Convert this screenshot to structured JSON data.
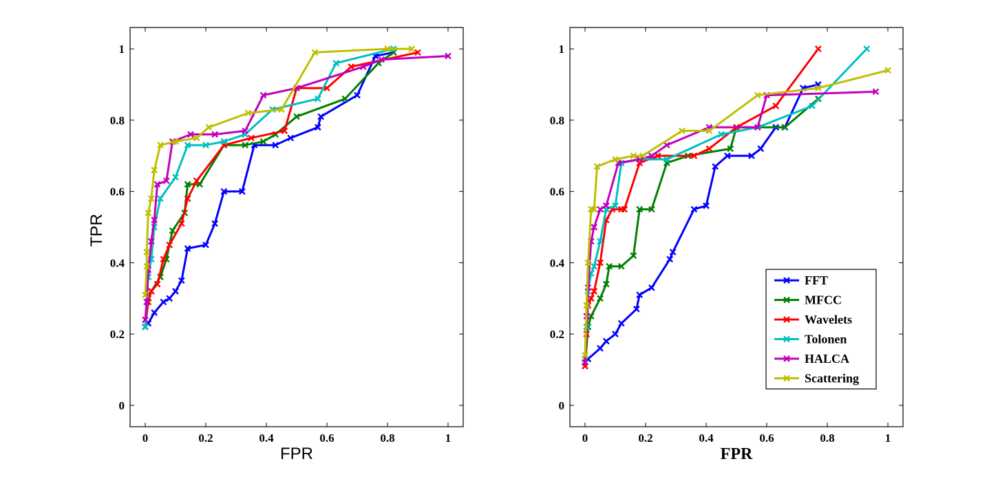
{
  "colors": {
    "FFT": "#0000ff",
    "MFCC": "#008000",
    "Wavelets": "#ff0000",
    "Tolonen": "#00bfbf",
    "HALCA": "#bf00bf",
    "Scattering": "#bfbf00"
  },
  "legend": {
    "entries": [
      "FFT",
      "MFCC",
      "Wavelets",
      "Tolonen",
      "HALCA",
      "Scattering"
    ],
    "placement": "bottom-right of right panel"
  },
  "chart_data": [
    {
      "type": "line",
      "xlabel": "FPR",
      "ylabel": "TPR",
      "xlim": [
        -0.05,
        1.05
      ],
      "ylim": [
        -0.06,
        1.06
      ],
      "xticks": [
        0,
        0.2,
        0.4,
        0.6,
        0.8,
        1
      ],
      "yticks": [
        0,
        0.2,
        0.4,
        0.6,
        0.8,
        1
      ],
      "xtick_labels": [
        "0",
        "0.2",
        "0.4",
        "0.6",
        "0.8",
        "1"
      ],
      "ytick_labels": [
        "0",
        "0.2",
        "0.4",
        "0.6",
        "0.8",
        "1"
      ],
      "series": [
        {
          "name": "FFT",
          "x": [
            0,
            0.01,
            0.03,
            0.06,
            0.08,
            0.1,
            0.12,
            0.14,
            0.2,
            0.23,
            0.26,
            0.32,
            0.36,
            0.43,
            0.48,
            0.57,
            0.58,
            0.7,
            0.76,
            0.82
          ],
          "y": [
            0.22,
            0.23,
            0.26,
            0.29,
            0.3,
            0.32,
            0.35,
            0.44,
            0.45,
            0.51,
            0.6,
            0.6,
            0.73,
            0.73,
            0.75,
            0.78,
            0.81,
            0.87,
            0.98,
            0.99
          ]
        },
        {
          "name": "MFCC",
          "x": [
            0,
            0.01,
            0.02,
            0.05,
            0.07,
            0.09,
            0.13,
            0.14,
            0.18,
            0.26,
            0.33,
            0.39,
            0.43,
            0.5,
            0.66,
            0.77,
            0.82
          ],
          "y": [
            0.22,
            0.3,
            0.32,
            0.36,
            0.41,
            0.49,
            0.54,
            0.62,
            0.62,
            0.73,
            0.73,
            0.74,
            0.76,
            0.81,
            0.86,
            0.96,
            0.99
          ]
        },
        {
          "name": "Wavelets",
          "x": [
            0,
            0.01,
            0.02,
            0.04,
            0.06,
            0.08,
            0.12,
            0.14,
            0.17,
            0.26,
            0.35,
            0.46,
            0.5,
            0.6,
            0.68,
            0.9
          ],
          "y": [
            0.22,
            0.29,
            0.32,
            0.34,
            0.41,
            0.45,
            0.51,
            0.58,
            0.63,
            0.73,
            0.75,
            0.77,
            0.89,
            0.89,
            0.95,
            0.99
          ]
        },
        {
          "name": "Tolonen",
          "x": [
            0,
            0.005,
            0.01,
            0.02,
            0.03,
            0.05,
            0.1,
            0.14,
            0.2,
            0.26,
            0.33,
            0.42,
            0.57,
            0.63,
            0.82
          ],
          "y": [
            0.22,
            0.29,
            0.36,
            0.41,
            0.5,
            0.58,
            0.64,
            0.73,
            0.73,
            0.74,
            0.76,
            0.83,
            0.86,
            0.96,
            1.0
          ]
        },
        {
          "name": "HALCA",
          "x": [
            0,
            0.005,
            0.01,
            0.02,
            0.03,
            0.04,
            0.07,
            0.09,
            0.15,
            0.23,
            0.33,
            0.39,
            0.5,
            0.72,
            0.78,
            1.0
          ],
          "y": [
            0.24,
            0.29,
            0.38,
            0.46,
            0.52,
            0.62,
            0.63,
            0.74,
            0.76,
            0.76,
            0.77,
            0.87,
            0.89,
            0.95,
            0.97,
            0.98
          ]
        },
        {
          "name": "Scattering",
          "x": [
            0,
            0.005,
            0.005,
            0.01,
            0.02,
            0.03,
            0.05,
            0.1,
            0.17,
            0.21,
            0.34,
            0.45,
            0.56,
            0.8,
            0.88
          ],
          "y": [
            0.31,
            0.39,
            0.43,
            0.54,
            0.58,
            0.66,
            0.73,
            0.74,
            0.75,
            0.78,
            0.82,
            0.83,
            0.99,
            1.0,
            1.0
          ]
        }
      ]
    },
    {
      "type": "line",
      "xlabel": "FPR",
      "ylabel": "",
      "xlim": [
        -0.05,
        1.05
      ],
      "ylim": [
        -0.06,
        1.06
      ],
      "xticks": [
        0,
        0.2,
        0.4,
        0.6,
        0.8,
        1
      ],
      "yticks": [
        0,
        0.2,
        0.4,
        0.6,
        0.8,
        1
      ],
      "xtick_labels": [
        "0",
        "0.2",
        "0.4",
        "0.6",
        "0.8",
        "1"
      ],
      "ytick_labels": [
        "0",
        "0.2",
        "0.4",
        "0.6",
        "0.8",
        "1"
      ],
      "series": [
        {
          "name": "FFT",
          "x": [
            0,
            0.01,
            0.05,
            0.07,
            0.1,
            0.12,
            0.17,
            0.18,
            0.22,
            0.28,
            0.29,
            0.36,
            0.4,
            0.43,
            0.47,
            0.55,
            0.58,
            0.63,
            0.66,
            0.72,
            0.77
          ],
          "y": [
            0.12,
            0.13,
            0.16,
            0.18,
            0.2,
            0.23,
            0.27,
            0.31,
            0.33,
            0.41,
            0.43,
            0.55,
            0.56,
            0.67,
            0.7,
            0.7,
            0.72,
            0.78,
            0.78,
            0.89,
            0.9
          ]
        },
        {
          "name": "MFCC",
          "x": [
            0,
            0.01,
            0.02,
            0.05,
            0.07,
            0.08,
            0.12,
            0.16,
            0.18,
            0.22,
            0.27,
            0.34,
            0.48,
            0.5,
            0.66,
            0.77
          ],
          "y": [
            0.11,
            0.22,
            0.25,
            0.3,
            0.34,
            0.39,
            0.39,
            0.42,
            0.55,
            0.55,
            0.68,
            0.7,
            0.72,
            0.78,
            0.78,
            0.86
          ]
        },
        {
          "name": "Wavelets",
          "x": [
            0,
            0.005,
            0.01,
            0.02,
            0.03,
            0.05,
            0.07,
            0.09,
            0.12,
            0.13,
            0.18,
            0.24,
            0.36,
            0.41,
            0.5,
            0.63,
            0.77
          ],
          "y": [
            0.11,
            0.2,
            0.28,
            0.3,
            0.32,
            0.4,
            0.52,
            0.55,
            0.55,
            0.55,
            0.68,
            0.7,
            0.7,
            0.72,
            0.78,
            0.84,
            1.0
          ]
        },
        {
          "name": "Tolonen",
          "x": [
            0,
            0.005,
            0.01,
            0.02,
            0.03,
            0.05,
            0.07,
            0.1,
            0.12,
            0.18,
            0.27,
            0.45,
            0.57,
            0.75,
            0.93
          ],
          "y": [
            0.13,
            0.22,
            0.32,
            0.37,
            0.39,
            0.46,
            0.55,
            0.56,
            0.68,
            0.69,
            0.69,
            0.76,
            0.78,
            0.84,
            1.0
          ]
        },
        {
          "name": "HALCA",
          "x": [
            0,
            0.005,
            0.01,
            0.02,
            0.03,
            0.05,
            0.07,
            0.11,
            0.18,
            0.22,
            0.27,
            0.41,
            0.57,
            0.6,
            0.96
          ],
          "y": [
            0.12,
            0.25,
            0.33,
            0.46,
            0.5,
            0.55,
            0.56,
            0.68,
            0.69,
            0.7,
            0.73,
            0.78,
            0.78,
            0.87,
            0.88
          ]
        },
        {
          "name": "Scattering",
          "x": [
            0,
            0.005,
            0.01,
            0.02,
            0.03,
            0.04,
            0.1,
            0.16,
            0.19,
            0.32,
            0.41,
            0.57,
            0.77,
            1.0
          ],
          "y": [
            0.14,
            0.28,
            0.4,
            0.55,
            0.55,
            0.67,
            0.69,
            0.7,
            0.7,
            0.77,
            0.77,
            0.87,
            0.89,
            0.94
          ]
        }
      ]
    }
  ]
}
